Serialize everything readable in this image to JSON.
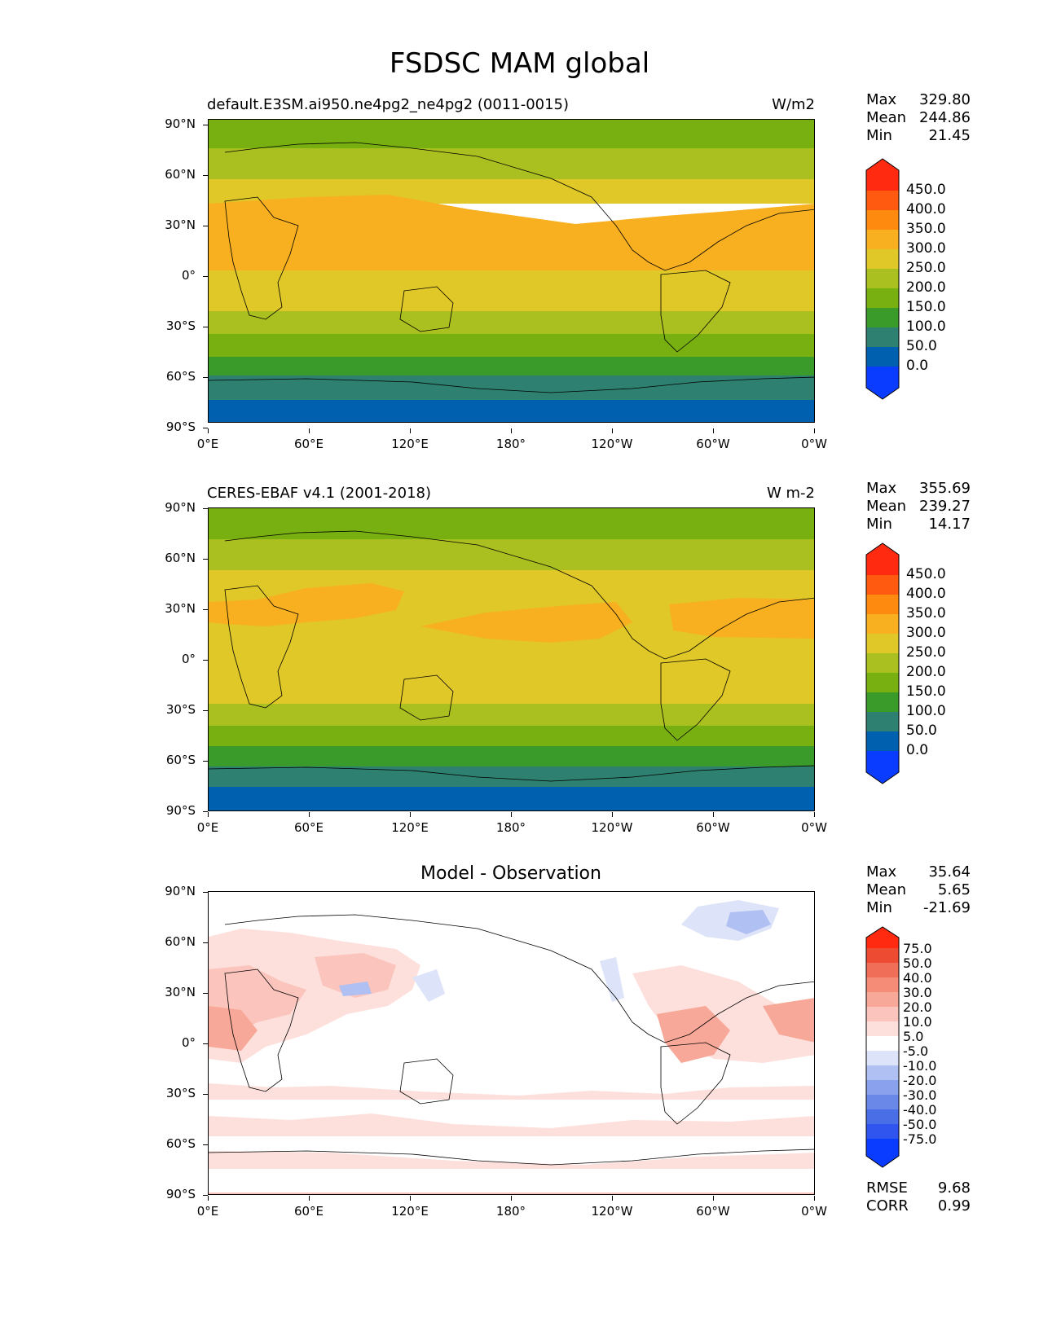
{
  "title": "FSDSC MAM global",
  "axes": {
    "lat_labels": [
      "90°N",
      "60°N",
      "30°N",
      "0°",
      "30°S",
      "60°S",
      "90°S"
    ],
    "lon_labels": [
      "0°E",
      "60°E",
      "120°E",
      "180°",
      "120°W",
      "60°W",
      "0°W"
    ]
  },
  "panels": [
    {
      "title_left": "default.E3SM.ai950.ne4pg2_ne4pg2 (0011-0015)",
      "title_right": "W/m2",
      "stats": [
        {
          "label": "Max",
          "value": "329.80"
        },
        {
          "label": "Mean",
          "value": "244.86"
        },
        {
          "label": "Min",
          "value": "21.45"
        }
      ],
      "colorbar_labels": [
        "450.0",
        "400.0",
        "350.0",
        "300.0",
        "250.0",
        "200.0",
        "150.0",
        "100.0",
        "50.0",
        "0.0"
      ]
    },
    {
      "title_left": "CERES-EBAF v4.1 (2001-2018)",
      "title_right": "W m-2",
      "stats": [
        {
          "label": "Max",
          "value": "355.69"
        },
        {
          "label": "Mean",
          "value": "239.27"
        },
        {
          "label": "Min",
          "value": "14.17"
        }
      ],
      "colorbar_labels": [
        "450.0",
        "400.0",
        "350.0",
        "300.0",
        "250.0",
        "200.0",
        "150.0",
        "100.0",
        "50.0",
        "0.0"
      ]
    },
    {
      "title_center": "Model - Observation",
      "stats": [
        {
          "label": "Max",
          "value": "35.64"
        },
        {
          "label": "Mean",
          "value": "5.65"
        },
        {
          "label": "Min",
          "value": "-21.69"
        }
      ],
      "colorbar_labels": [
        "75.0",
        "50.0",
        "40.0",
        "30.0",
        "20.0",
        "10.0",
        "5.0",
        "-5.0",
        "-10.0",
        "-20.0",
        "-30.0",
        "-40.0",
        "-50.0",
        "-75.0"
      ],
      "footer": [
        {
          "label": "RMSE",
          "value": "9.68"
        },
        {
          "label": "CORR",
          "value": "0.99"
        }
      ]
    }
  ],
  "colors": {
    "field_levels": [
      "#0a3cff",
      "#0060b0",
      "#2e8070",
      "#3a9a2a",
      "#78b012",
      "#a9c020",
      "#e0c828",
      "#f8b020",
      "#ff8a10",
      "#ff5a10",
      "#ff2a10"
    ],
    "diff_levels": [
      "#0a3cff",
      "#2f55ee",
      "#4a6ee6",
      "#6a88e8",
      "#8aa2ee",
      "#b0c0f3",
      "#dde3f8",
      "#ffffff",
      "#fde0dc",
      "#fbc4bc",
      "#f8a898",
      "#f58c78",
      "#f06e58",
      "#ee4c32",
      "#ff2a10"
    ]
  }
}
